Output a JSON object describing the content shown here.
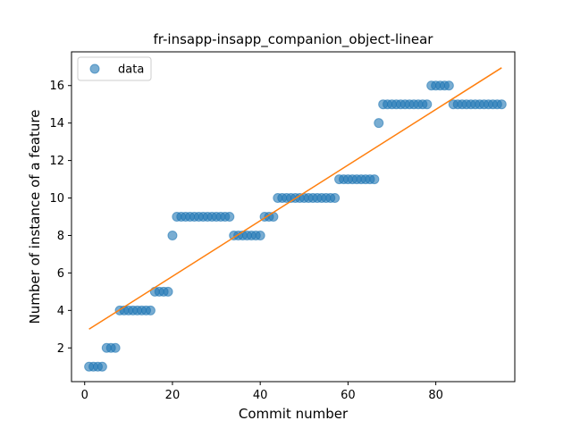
{
  "chart_data": {
    "type": "scatter",
    "title": "fr-insapp-insapp_companion_object-linear",
    "xlabel": "Commit number",
    "ylabel": "Number of instance of a feature",
    "xlim": [
      -3,
      98
    ],
    "ylim": [
      0.2,
      17.8
    ],
    "xticks": [
      0,
      20,
      40,
      60,
      80
    ],
    "yticks": [
      2,
      4,
      6,
      8,
      10,
      12,
      14,
      16
    ],
    "grid": false,
    "legend_position": "top-left",
    "colors": {
      "points": "#1f77b4",
      "fit": "#ff7f0e"
    },
    "series": [
      {
        "name": "data",
        "marker": "circle",
        "x": [
          1,
          2,
          3,
          4,
          5,
          6,
          7,
          8,
          9,
          10,
          11,
          12,
          13,
          14,
          15,
          16,
          17,
          18,
          19,
          20,
          21,
          22,
          23,
          24,
          25,
          26,
          27,
          28,
          29,
          30,
          31,
          32,
          33,
          34,
          35,
          36,
          37,
          38,
          39,
          40,
          41,
          42,
          43,
          44,
          45,
          46,
          47,
          48,
          49,
          50,
          51,
          52,
          53,
          54,
          55,
          56,
          57,
          58,
          59,
          60,
          61,
          62,
          63,
          64,
          65,
          66,
          67,
          68,
          69,
          70,
          71,
          72,
          73,
          74,
          75,
          76,
          77,
          78,
          79,
          80,
          81,
          82,
          83,
          84,
          85,
          86,
          87,
          88,
          89,
          90,
          91,
          92,
          93,
          94,
          95
        ],
        "y": [
          1,
          1,
          1,
          1,
          2,
          2,
          2,
          4,
          4,
          4,
          4,
          4,
          4,
          4,
          4,
          5,
          5,
          5,
          5,
          8,
          9,
          9,
          9,
          9,
          9,
          9,
          9,
          9,
          9,
          9,
          9,
          9,
          9,
          8,
          8,
          8,
          8,
          8,
          8,
          8,
          9,
          9,
          9,
          10,
          10,
          10,
          10,
          10,
          10,
          10,
          10,
          10,
          10,
          10,
          10,
          10,
          10,
          11,
          11,
          11,
          11,
          11,
          11,
          11,
          11,
          11,
          14,
          15,
          15,
          15,
          15,
          15,
          15,
          15,
          15,
          15,
          15,
          15,
          16,
          16,
          16,
          16,
          16,
          15,
          15,
          15,
          15,
          15,
          15,
          15,
          15,
          15,
          15,
          15,
          15
        ]
      },
      {
        "type": "line",
        "x": [
          1,
          95
        ],
        "y": [
          3.0,
          16.95
        ]
      }
    ]
  }
}
